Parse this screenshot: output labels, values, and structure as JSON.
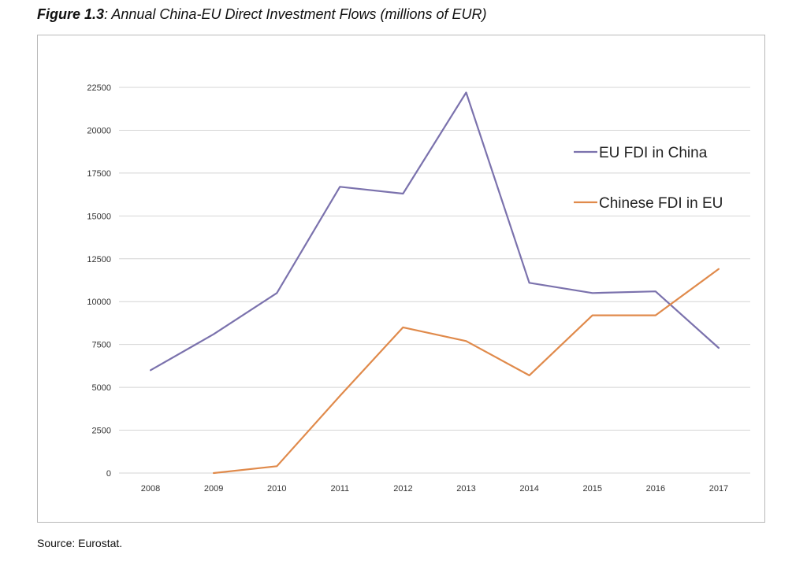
{
  "figure": {
    "label": "Figure 1.3",
    "title": ": Annual China-EU Direct Investment  Flows (millions of EUR)"
  },
  "source": "Source: Eurostat.",
  "chart_data": {
    "type": "line",
    "categories": [
      "2008",
      "2009",
      "2010",
      "2011",
      "2012",
      "2013",
      "2014",
      "2015",
      "2016",
      "2017"
    ],
    "ylim": [
      0,
      22500
    ],
    "yticks": [
      0,
      2500,
      5000,
      7500,
      10000,
      12500,
      15000,
      17500,
      20000,
      22500
    ],
    "grid": true,
    "legend_position": "right",
    "series": [
      {
        "name": "EU FDI in China",
        "color": "#7b72ad",
        "values": [
          6000,
          8100,
          10500,
          16700,
          16300,
          22200,
          11100,
          10500,
          10600,
          7300
        ]
      },
      {
        "name": "Chinese FDI in EU",
        "color": "#e08a4b",
        "values": [
          null,
          0,
          400,
          4500,
          8500,
          7700,
          5700,
          9200,
          9200,
          11900
        ]
      }
    ]
  }
}
